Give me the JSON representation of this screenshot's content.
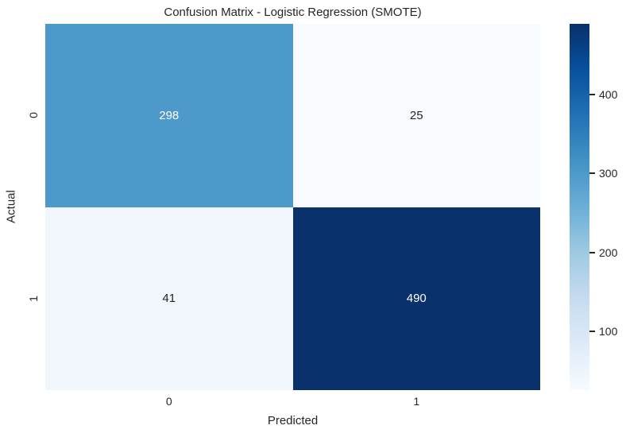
{
  "chart_data": {
    "type": "heatmap",
    "title": "Confusion Matrix - Logistic Regression (SMOTE)",
    "xlabel": "Predicted",
    "ylabel": "Actual",
    "x_tick_labels": [
      "0",
      "1"
    ],
    "y_tick_labels": [
      "0",
      "1"
    ],
    "matrix": [
      [
        298,
        25
      ],
      [
        41,
        490
      ]
    ],
    "vmin": 25,
    "vmax": 490,
    "colormap": "Blues",
    "colormap_stops_top_to_bottom": [
      "#08306b",
      "#08519c",
      "#2171b5",
      "#4292c6",
      "#6baed6",
      "#9ecae1",
      "#c6dbef",
      "#deebf7",
      "#f7fbff"
    ],
    "cells": [
      {
        "row": 0,
        "col": 0,
        "value": "298",
        "bg": "#4d9aca",
        "fg": "#ffffff"
      },
      {
        "row": 0,
        "col": 1,
        "value": "25",
        "bg": "#f7fbff",
        "fg": "#262626"
      },
      {
        "row": 1,
        "col": 0,
        "value": "41",
        "bg": "#f0f6fc",
        "fg": "#262626"
      },
      {
        "row": 1,
        "col": 1,
        "value": "490",
        "bg": "#09316c",
        "fg": "#ffffff"
      }
    ],
    "colorbar": {
      "ticks": [
        100,
        200,
        300,
        400
      ]
    },
    "style": {
      "text_color": "#262626",
      "background": "#ffffff"
    }
  }
}
